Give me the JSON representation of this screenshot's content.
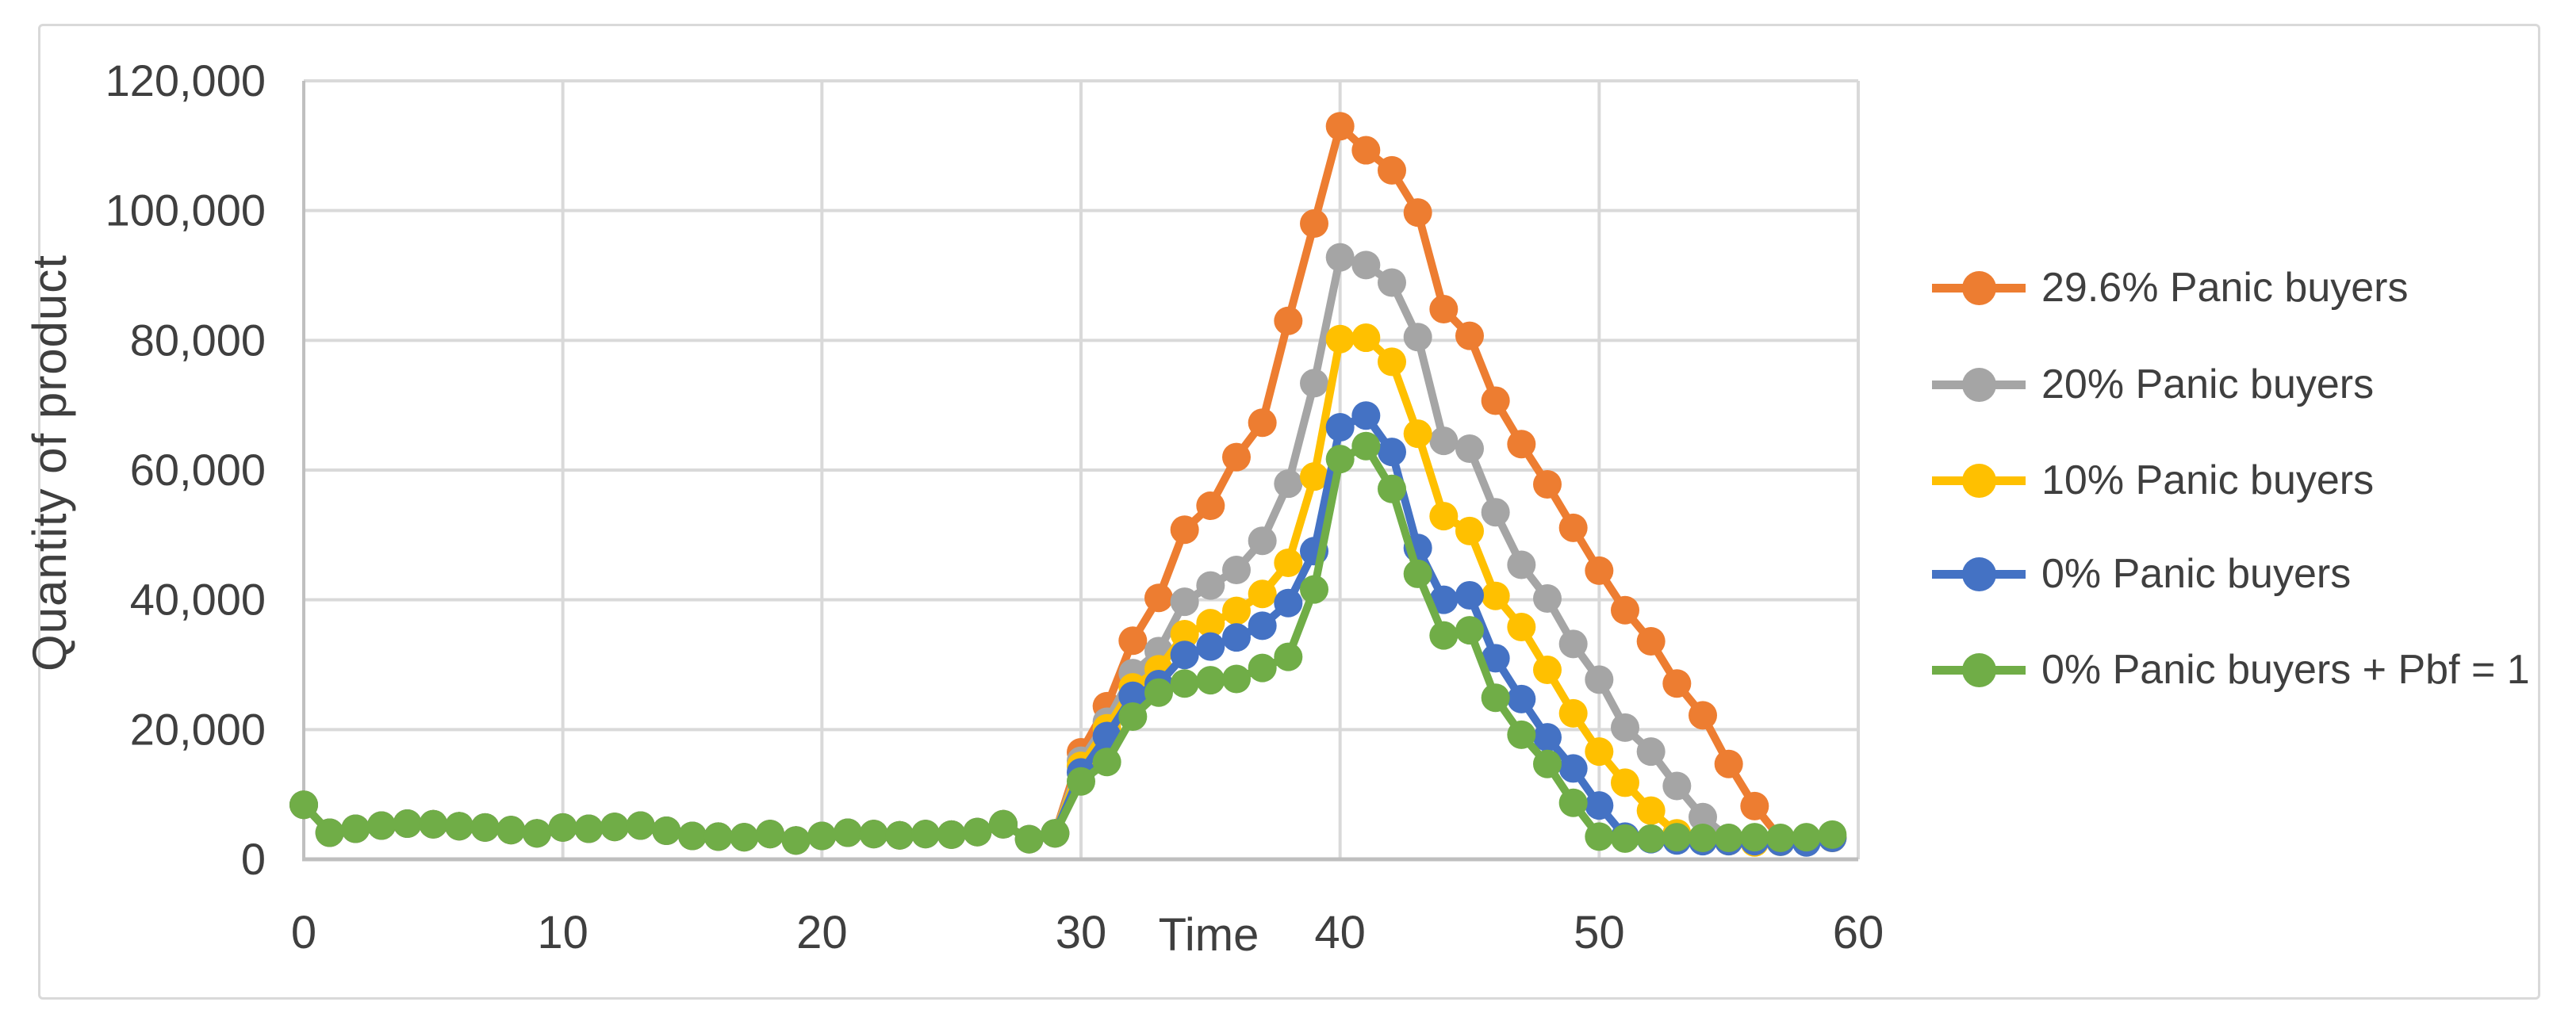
{
  "chart_data": {
    "type": "line",
    "title": "",
    "xlabel": "Time",
    "ylabel": "Quantity of product",
    "xlim": [
      0,
      60
    ],
    "ylim": [
      0,
      120000
    ],
    "grid": true,
    "legend_position": "right",
    "x_ticks": [
      "0",
      "10",
      "20",
      "30",
      "40",
      "50",
      "60"
    ],
    "y_ticks": [
      "0",
      "20,000",
      "40,000",
      "60,000",
      "80,000",
      "100,000",
      "120,000"
    ],
    "x": [
      0,
      1,
      2,
      3,
      4,
      5,
      6,
      7,
      8,
      9,
      10,
      11,
      12,
      13,
      14,
      15,
      16,
      17,
      18,
      19,
      20,
      21,
      22,
      23,
      24,
      25,
      26,
      27,
      28,
      29,
      30,
      31,
      32,
      33,
      34,
      35,
      36,
      37,
      38,
      39,
      40,
      41,
      42,
      43,
      44,
      45,
      46,
      47,
      48,
      49,
      50,
      51,
      52,
      53,
      54,
      55,
      56,
      57,
      58,
      59
    ],
    "series": [
      {
        "name": "29.6% Panic buyers",
        "color": "#ED7D31",
        "values": [
          8400,
          4100,
          4700,
          5200,
          5500,
          5400,
          5100,
          4900,
          4500,
          4000,
          4900,
          4700,
          5000,
          5200,
          4400,
          3600,
          3500,
          3400,
          3900,
          2900,
          3600,
          4100,
          3900,
          3700,
          3900,
          3800,
          4200,
          5400,
          3100,
          4000,
          16500,
          23600,
          33700,
          40300,
          50800,
          54500,
          62000,
          67300,
          83000,
          98000,
          113000,
          109300,
          106200,
          99700,
          84800,
          80700,
          70700,
          64000,
          57800,
          51100,
          44500,
          38400,
          33600,
          27100,
          22200,
          14700,
          8200,
          3200,
          2800,
          3300
        ]
      },
      {
        "name": "20% Panic buyers",
        "color": "#A5A5A5",
        "values": [
          8400,
          4100,
          4700,
          5200,
          5500,
          5400,
          5100,
          4900,
          4500,
          4000,
          4900,
          4700,
          5000,
          5200,
          4400,
          3600,
          3500,
          3400,
          3900,
          2900,
          3600,
          4100,
          3900,
          3700,
          3900,
          3800,
          4200,
          5400,
          3100,
          4000,
          15200,
          21200,
          28700,
          32100,
          39700,
          42200,
          44600,
          49100,
          57900,
          73400,
          92800,
          91600,
          88900,
          80500,
          64500,
          63300,
          53500,
          45400,
          40200,
          33200,
          27700,
          20300,
          16600,
          11300,
          6500,
          3300,
          2900,
          2900,
          2800,
          3300
        ]
      },
      {
        "name": "10% Panic buyers",
        "color": "#FFC000",
        "values": [
          8400,
          4100,
          4700,
          5200,
          5500,
          5400,
          5100,
          4900,
          4500,
          4000,
          4900,
          4700,
          5000,
          5200,
          4400,
          3600,
          3500,
          3400,
          3900,
          2900,
          3600,
          4100,
          3900,
          3700,
          3900,
          3800,
          4200,
          5400,
          3100,
          4000,
          14400,
          20200,
          26500,
          29300,
          34700,
          36400,
          38300,
          40900,
          45700,
          59000,
          80200,
          80400,
          76700,
          65600,
          52900,
          50600,
          40600,
          35800,
          29200,
          22500,
          16600,
          11800,
          7500,
          4000,
          3000,
          2800,
          2600,
          2700,
          2800,
          3300
        ]
      },
      {
        "name": "0% Panic buyers",
        "color": "#4472C4",
        "values": [
          8400,
          4100,
          4700,
          5200,
          5500,
          5400,
          5100,
          4900,
          4500,
          4000,
          4900,
          4700,
          5000,
          5200,
          4400,
          3600,
          3500,
          3400,
          3900,
          2900,
          3600,
          4100,
          3900,
          3700,
          3900,
          3800,
          4200,
          5400,
          3100,
          4000,
          13400,
          19000,
          25200,
          27000,
          31500,
          32800,
          34200,
          36000,
          39500,
          47500,
          66600,
          68400,
          62800,
          48000,
          40000,
          40700,
          31000,
          24700,
          18800,
          14000,
          8300,
          3500,
          3100,
          2900,
          2800,
          2800,
          2800,
          2700,
          2600,
          3300
        ]
      },
      {
        "name": "0% Panic buyers + Pbf = 1",
        "color": "#70AD47",
        "values": [
          8400,
          4100,
          4700,
          5200,
          5500,
          5400,
          5100,
          4900,
          4500,
          4000,
          4900,
          4700,
          5000,
          5200,
          4400,
          3600,
          3500,
          3400,
          3900,
          2900,
          3600,
          4100,
          3900,
          3700,
          3900,
          3800,
          4200,
          5400,
          3100,
          4000,
          12000,
          15000,
          22000,
          25700,
          27100,
          27600,
          27800,
          29500,
          31200,
          41600,
          61700,
          63700,
          57100,
          44000,
          34500,
          35300,
          24900,
          19200,
          14700,
          8700,
          3500,
          3200,
          3200,
          3400,
          3300,
          3300,
          3400,
          3300,
          3400,
          3800
        ]
      }
    ],
    "colors": {
      "grid": "#D9D9D9",
      "axis": "#BFBFBF",
      "text": "#3F3F3F",
      "chart_border": "#D9D9D9",
      "background": "#FFFFFF"
    }
  }
}
